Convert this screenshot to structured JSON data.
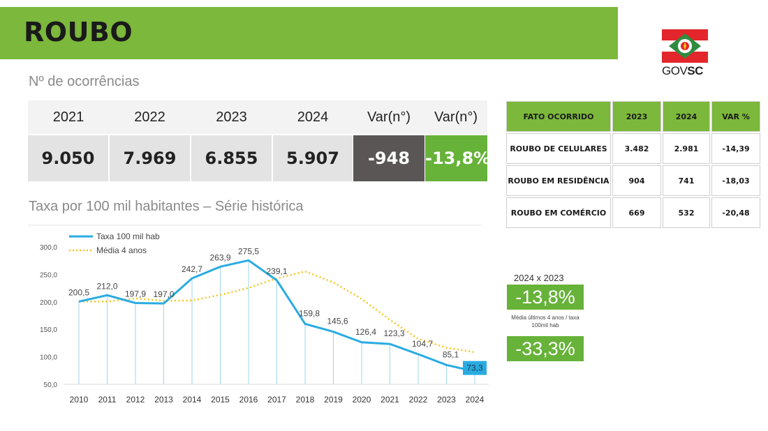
{
  "page": {
    "title": "ROUBO",
    "logo_text_regular": "GOV",
    "logo_text_bold": "SC",
    "colors": {
      "brand_green": "#7cb83b",
      "box_green": "#67b239",
      "dark_box": "#5a5655",
      "series_line": "#29abe2",
      "avg_line": "#f5c518"
    }
  },
  "occurrences": {
    "title": "Nº de ocorrências",
    "headers": [
      "2021",
      "2022",
      "2023",
      "2024",
      "Var(n°)",
      "Var(n°)"
    ],
    "values": [
      "9.050",
      "7.969",
      "6.855",
      "5.907",
      "-948",
      "-13,8%"
    ]
  },
  "facts_table": {
    "headers": [
      "FATO OCORRIDO",
      "2023",
      "2024",
      "VAR %"
    ],
    "rows": [
      [
        "ROUBO DE CELULARES",
        "3.482",
        "2.981",
        "-14,39"
      ],
      [
        "ROUBO EM RESIDÊNCIA",
        "904",
        "741",
        "-18,03"
      ],
      [
        "ROUBO EM COMÉRCIO",
        "669",
        "532",
        "-20,48"
      ]
    ]
  },
  "comparison": {
    "label": "2024  x 2023",
    "value": "-13,8%",
    "note": "Média últimos 4 anos / taxa 100mil hab",
    "avg_value": "-33,3%"
  },
  "chart_data": {
    "type": "line",
    "title": "Taxa por 100 mil habitantes – Série histórica",
    "x": [
      "2010",
      "2011",
      "2012",
      "2013",
      "2014",
      "2015",
      "2016",
      "2017",
      "2018",
      "2019",
      "2020",
      "2021",
      "2022",
      "2023",
      "2024"
    ],
    "series": [
      {
        "name": "Taxa 100 mil hab",
        "values": [
          200.5,
          212.0,
          197.9,
          197.0,
          242.7,
          263.9,
          275.5,
          239.1,
          159.8,
          145.6,
          126.4,
          123.3,
          104.7,
          85.1,
          73.3
        ],
        "labels": [
          "200,5",
          "212,0",
          "197,9",
          "197,0",
          "242,7",
          "263,9",
          "275,5",
          "239,1",
          "159,8",
          "145,6",
          "126,4",
          "123,3",
          "104,7",
          "85,1",
          "73,3"
        ],
        "color": "#29abe2"
      },
      {
        "name": "Média 4 anos",
        "values": [
          200.5,
          200.5,
          206.3,
          201.9,
          202.4,
          212.7,
          225.3,
          242.6,
          255.4,
          235.4,
          205.3,
          167.3,
          132.6,
          116.5,
          108.3
        ],
        "color": "#f5c518"
      }
    ],
    "yticks": [
      "300,0",
      "250,0",
      "200,0",
      "150,0",
      "100,0",
      "50,0"
    ],
    "ylim": [
      50,
      300
    ],
    "legend": "top-left",
    "grid": false
  }
}
